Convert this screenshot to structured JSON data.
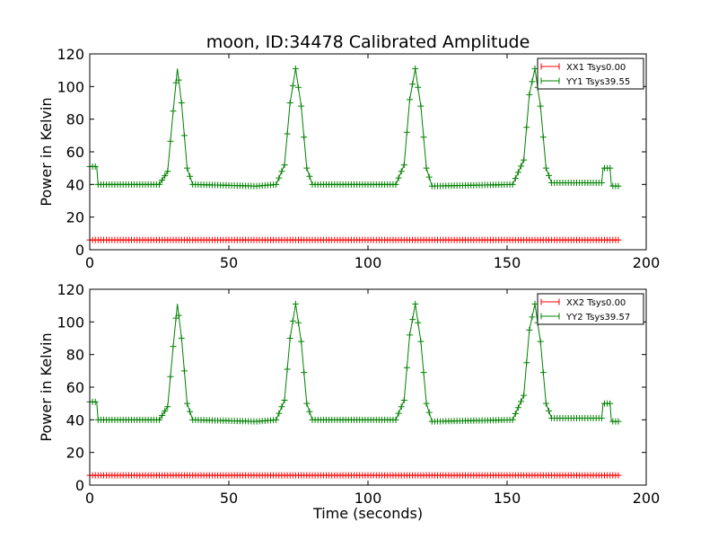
{
  "chart_data": [
    {
      "type": "line",
      "title": "moon, ID:34478 Calibrated Amplitude",
      "xlabel": "",
      "ylabel": "Power in Kelvin",
      "xlim": [
        0,
        200
      ],
      "ylim": [
        0,
        120
      ],
      "xticks": [
        0,
        50,
        100,
        150,
        200
      ],
      "yticks": [
        0,
        20,
        40,
        60,
        80,
        100,
        120
      ],
      "grid": false,
      "legend_position": "top-right",
      "series": [
        {
          "name": "XX1 Tsys0.00",
          "color": "#ff0000",
          "marker": "plus",
          "points": [
            [
              0,
              6
            ],
            [
              190,
              6
            ]
          ]
        },
        {
          "name": "YY1 Tsys39.55",
          "color": "#008000",
          "marker": "plus",
          "points": [
            [
              0,
              51
            ],
            [
              2.5,
              51
            ],
            [
              3,
              40
            ],
            [
              25,
              40
            ],
            [
              28,
              48
            ],
            [
              30,
              85
            ],
            [
              31.5,
              111
            ],
            [
              33,
              90
            ],
            [
              35,
              50
            ],
            [
              37,
              40
            ],
            [
              60,
              39
            ],
            [
              67,
              40
            ],
            [
              70,
              52
            ],
            [
              72,
              90
            ],
            [
              74,
              111
            ],
            [
              76,
              88
            ],
            [
              78,
              50
            ],
            [
              80,
              40
            ],
            [
              110,
              40
            ],
            [
              113,
              52
            ],
            [
              115,
              92
            ],
            [
              117,
              111
            ],
            [
              119,
              88
            ],
            [
              121,
              50
            ],
            [
              123,
              39
            ],
            [
              152,
              40
            ],
            [
              156,
              55
            ],
            [
              158,
              95
            ],
            [
              160,
              111
            ],
            [
              162,
              88
            ],
            [
              164,
              50
            ],
            [
              166,
              41
            ],
            [
              184,
              41
            ],
            [
              184.5,
              50
            ],
            [
              187,
              50
            ],
            [
              187.5,
              39
            ],
            [
              190,
              39
            ]
          ]
        }
      ]
    },
    {
      "type": "line",
      "title": "",
      "xlabel": "Time (seconds)",
      "ylabel": "Power in Kelvin",
      "xlim": [
        0,
        200
      ],
      "ylim": [
        0,
        120
      ],
      "xticks": [
        0,
        50,
        100,
        150,
        200
      ],
      "yticks": [
        0,
        20,
        40,
        60,
        80,
        100,
        120
      ],
      "grid": false,
      "legend_position": "top-right",
      "series": [
        {
          "name": "XX2 Tsys0.00",
          "color": "#ff0000",
          "marker": "plus",
          "points": [
            [
              0,
              6
            ],
            [
              190,
              6
            ]
          ]
        },
        {
          "name": "YY2 Tsys39.57",
          "color": "#008000",
          "marker": "plus",
          "points": [
            [
              0,
              51
            ],
            [
              2.5,
              51
            ],
            [
              3,
              40
            ],
            [
              25,
              40
            ],
            [
              28,
              48
            ],
            [
              30,
              85
            ],
            [
              31.5,
              111
            ],
            [
              33,
              90
            ],
            [
              35,
              50
            ],
            [
              37,
              40
            ],
            [
              60,
              39
            ],
            [
              67,
              40
            ],
            [
              70,
              52
            ],
            [
              72,
              90
            ],
            [
              74,
              111
            ],
            [
              76,
              88
            ],
            [
              78,
              50
            ],
            [
              80,
              40
            ],
            [
              110,
              40
            ],
            [
              113,
              52
            ],
            [
              115,
              92
            ],
            [
              117,
              111
            ],
            [
              119,
              88
            ],
            [
              121,
              50
            ],
            [
              123,
              39
            ],
            [
              152,
              40
            ],
            [
              156,
              55
            ],
            [
              158,
              95
            ],
            [
              160,
              111
            ],
            [
              162,
              88
            ],
            [
              164,
              50
            ],
            [
              166,
              41
            ],
            [
              184,
              41
            ],
            [
              184.5,
              50
            ],
            [
              187,
              50
            ],
            [
              187.5,
              39
            ],
            [
              190,
              39
            ]
          ]
        }
      ]
    }
  ]
}
